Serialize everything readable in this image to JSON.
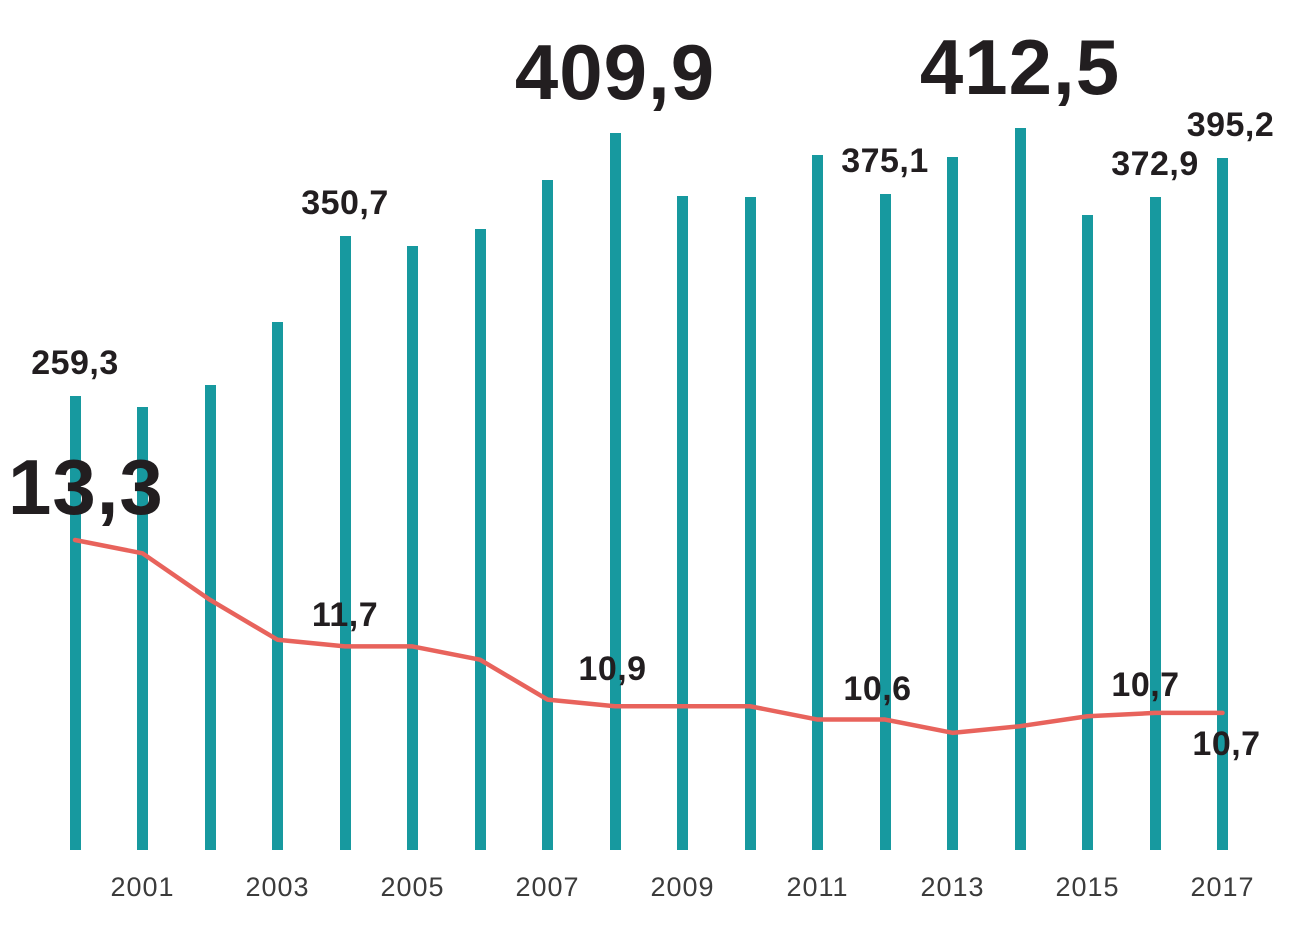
{
  "chart_data": {
    "type": "bar",
    "subtype": "bar-and-line-combo",
    "title": "",
    "xlabel": "",
    "ylabel": "",
    "legend": "none",
    "gridlines": false,
    "decimal_separator": ",",
    "x": [
      2000,
      2001,
      2002,
      2003,
      2004,
      2005,
      2006,
      2007,
      2008,
      2009,
      2010,
      2011,
      2012,
      2013,
      2014,
      2015,
      2016,
      2017
    ],
    "x_axis_tick_labels": [
      "2001",
      "2003",
      "2005",
      "2007",
      "2009",
      "2011",
      "2013",
      "2015",
      "2017"
    ],
    "series": [
      {
        "name": "bar-series",
        "type": "bar",
        "color": "#17999f",
        "axis_range": [
          0,
          480
        ],
        "values": [
          259.3,
          253,
          266,
          302,
          350.7,
          345,
          355,
          383,
          409.9,
          374,
          373,
          397,
          375.1,
          396,
          412.5,
          363,
          372.9,
          395.2
        ]
      },
      {
        "name": "line-series",
        "type": "line",
        "color": "#e8635c",
        "values": [
          13.3,
          13.1,
          12.4,
          11.8,
          11.7,
          11.7,
          11.5,
          10.9,
          10.8,
          10.8,
          10.8,
          10.6,
          10.6,
          10.4,
          10.5,
          10.65,
          10.7,
          10.7
        ]
      }
    ],
    "bar_value_labels": [
      {
        "year": 2000,
        "text": "259,3",
        "size": "medium"
      },
      {
        "year": 2004,
        "text": "350,7",
        "size": "medium"
      },
      {
        "year": 2008,
        "text": "409,9",
        "size": "large"
      },
      {
        "year": 2012,
        "text": "375,1",
        "size": "medium"
      },
      {
        "year": 2014,
        "text": "412,5",
        "size": "large"
      },
      {
        "year": 2016,
        "text": "372,9",
        "size": "medium"
      },
      {
        "year": 2017,
        "text": "395,2",
        "size": "medium"
      }
    ],
    "line_value_labels": [
      {
        "year": 2000,
        "text": "13,3",
        "size": "large",
        "align": "left"
      },
      {
        "year": 2004,
        "text": "11,7",
        "size": "medium"
      },
      {
        "year": 2007,
        "text": "10,9",
        "size": "medium"
      },
      {
        "year": 2011,
        "text": "10,6",
        "size": "medium"
      },
      {
        "year": 2015,
        "text": "10,7",
        "size": "medium"
      },
      {
        "year": 2017,
        "text": "10,7",
        "size": "medium",
        "position": "below"
      }
    ]
  }
}
